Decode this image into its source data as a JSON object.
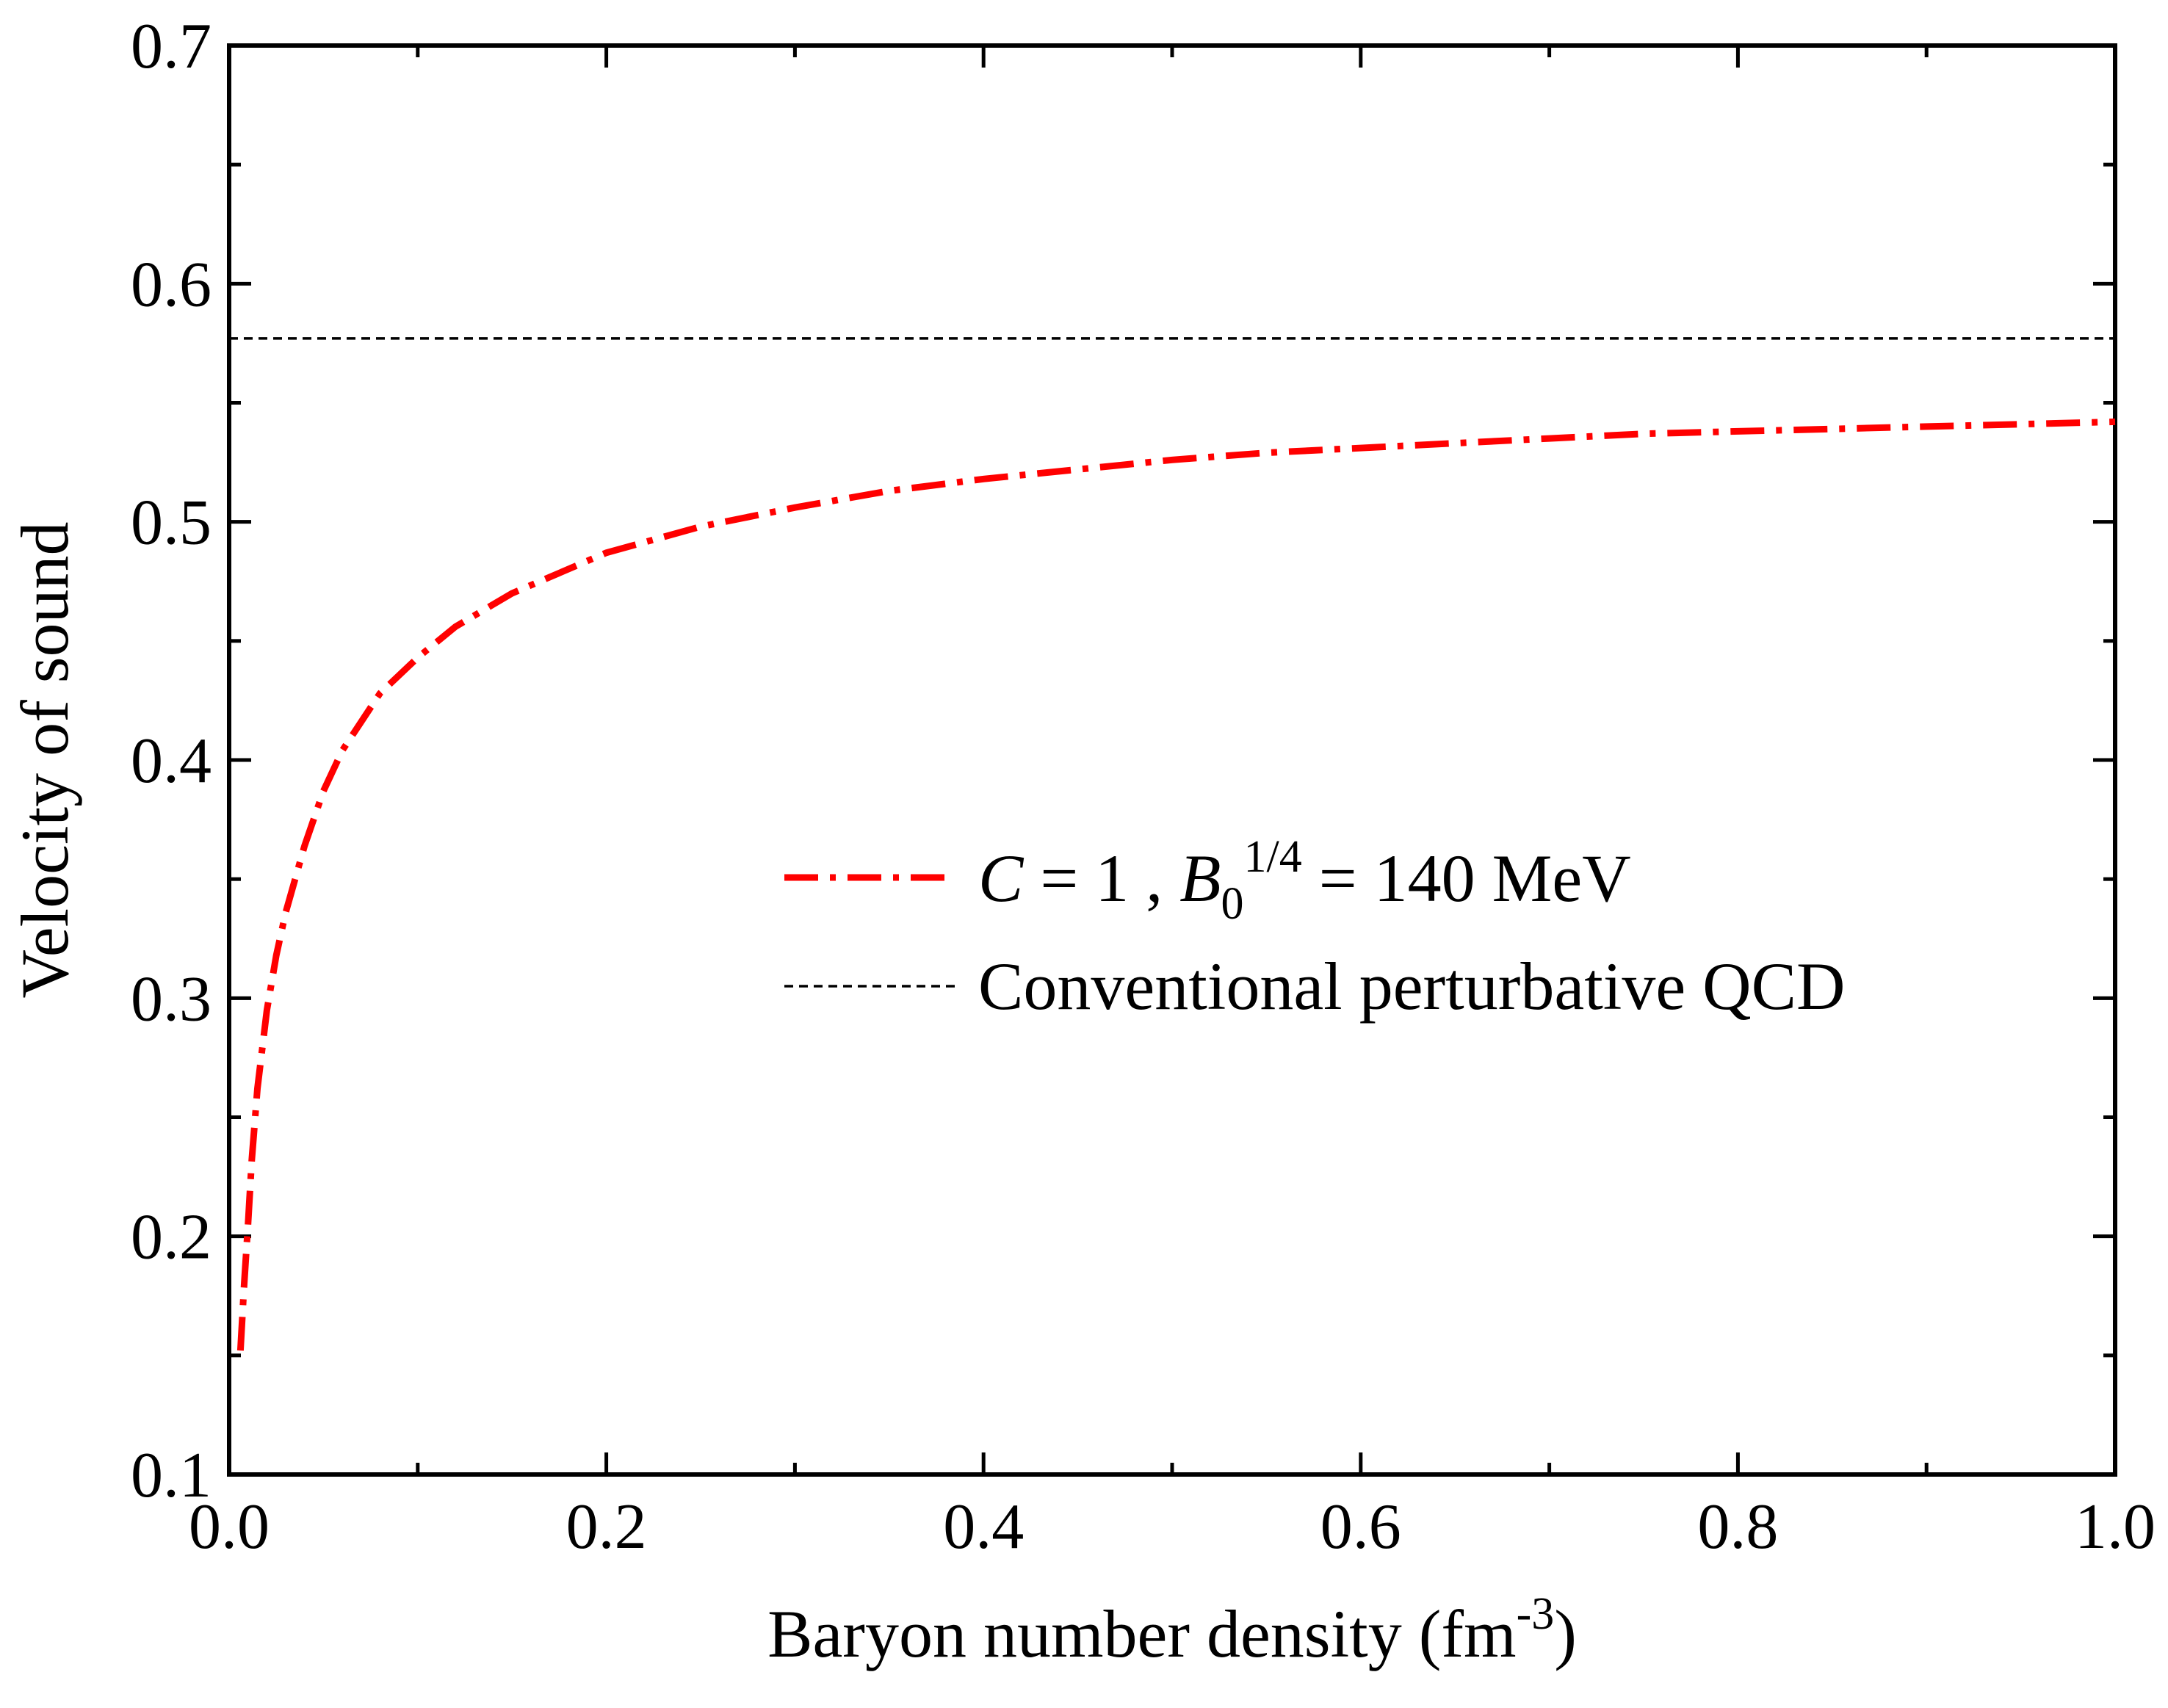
{
  "chart_data": {
    "type": "line",
    "title": "",
    "xlabel": "Baryon number density (fm",
    "xlabel_sup": "-3",
    "xlabel_end": ")",
    "ylabel": "Velocity of sound",
    "xlim": [
      0.0,
      1.0
    ],
    "ylim": [
      0.1,
      0.7
    ],
    "x_ticks": [
      "0.0",
      "0.2",
      "0.4",
      "0.6",
      "0.8",
      "1.0"
    ],
    "y_ticks": [
      "0.1",
      "0.2",
      "0.3",
      "0.4",
      "0.5",
      "0.6",
      "0.7"
    ],
    "legend_position": "center-right",
    "series": [
      {
        "name": "C = 1 , B0^1/4 = 140 MeV",
        "style": "dash-dot",
        "color": "#ff0000",
        "x": [
          0.006,
          0.008,
          0.01,
          0.012,
          0.015,
          0.02,
          0.025,
          0.03,
          0.04,
          0.05,
          0.06,
          0.08,
          0.1,
          0.12,
          0.15,
          0.2,
          0.25,
          0.3,
          0.35,
          0.4,
          0.45,
          0.5,
          0.55,
          0.6,
          0.65,
          0.7,
          0.75,
          0.8,
          0.85,
          0.9,
          0.95,
          1.0
        ],
        "y": [
          0.152,
          0.18,
          0.205,
          0.232,
          0.262,
          0.295,
          0.318,
          0.336,
          0.364,
          0.387,
          0.404,
          0.428,
          0.443,
          0.456,
          0.47,
          0.487,
          0.498,
          0.506,
          0.513,
          0.518,
          0.522,
          0.526,
          0.529,
          0.531,
          0.533,
          0.535,
          0.537,
          0.538,
          0.539,
          0.54,
          0.541,
          0.542
        ]
      },
      {
        "name": "Conventional perturbative QCD",
        "style": "dashed",
        "color": "#000000",
        "x": [
          0.0,
          1.0
        ],
        "y": [
          0.577,
          0.577
        ]
      }
    ],
    "legend": {
      "entry1": {
        "var_c": "C",
        "eq1": " = 1 , ",
        "var_b": "B",
        "sub_b": "0",
        "sup_b": "1/4",
        "rest": " = 140 MeV"
      },
      "entry2": {
        "label": "Conventional perturbative QCD"
      }
    }
  }
}
